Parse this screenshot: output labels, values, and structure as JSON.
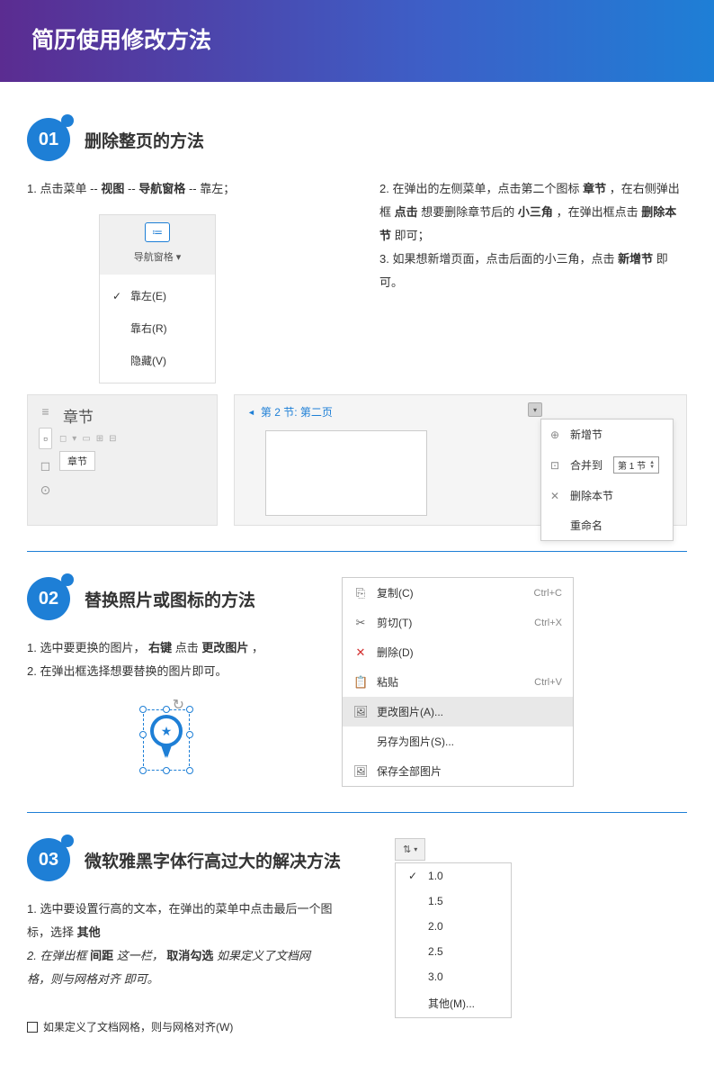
{
  "header_title": "简历使用修改方法",
  "sec1": {
    "num": "01",
    "title": "删除整页的方法",
    "step1": "1.  点击菜单  --",
    "s1_b1": "视图",
    "s1_mid": "--",
    "s1_b2": "导航窗格",
    "s1_end": "--  靠左；",
    "step2_a": "2.  在弹出的左侧菜单，点击第二个图标",
    "step2_b": "章节",
    "step2_c": "，在右侧弹出框",
    "step2_d": "点击",
    "step2_e": "想要删除章节后的",
    "step2_f": "小三角",
    "step2_g": "，在弹出框点击",
    "step2_h": "删除本节",
    "step2_i": "即可；",
    "step3_a": "3.  如果想新增页面，点击后面的小三角，点击",
    "step3_b": "新增节",
    "step3_c": "即可。",
    "nav_label": "导航窗格",
    "nav_items": [
      "靠左(E)",
      "靠右(R)",
      "隐藏(V)"
    ],
    "sidebar_title": "章节",
    "sidebar_tag": "章节",
    "doc_title": "第 2 节: 第二页",
    "ctx_items": [
      {
        "icon": "⊕",
        "label": "新增节"
      },
      {
        "icon": "⊡",
        "label": "合并到",
        "spinner": "第 1 节"
      },
      {
        "icon": "✕",
        "label": "删除本节"
      },
      {
        "icon": "",
        "label": "重命名"
      }
    ]
  },
  "sec2": {
    "num": "02",
    "title": "替换照片或图标的方法",
    "step1": "1. 选中要更换的图片，",
    "s1_b": "右键",
    "s1_mid": "点击",
    "s1_b2": "更改图片",
    "s1_end": "，",
    "step2": "2. 在弹出框选择想要替换的图片即可。",
    "menu": [
      {
        "icon": "⎘",
        "label": "复制(C)",
        "shortcut": "Ctrl+C"
      },
      {
        "icon": "✂",
        "label": "剪切(T)",
        "shortcut": "Ctrl+X"
      },
      {
        "icon": "✕",
        "label": "删除(D)",
        "shortcut": "",
        "red": true
      },
      {
        "icon": "📋",
        "label": "粘贴",
        "shortcut": "Ctrl+V"
      },
      {
        "icon": "🖼",
        "label": "更改图片(A)...",
        "shortcut": "",
        "highlight": true
      },
      {
        "icon": "",
        "label": "另存为图片(S)...",
        "shortcut": "",
        "indent": true
      },
      {
        "icon": "🖼",
        "label": "保存全部图片",
        "shortcut": ""
      }
    ]
  },
  "sec3": {
    "num": "03",
    "title": "微软雅黑字体行高过大的解决方法",
    "step1": "1. 选中要设置行高的文本，在弹出的菜单中点击最后一个图标，选择",
    "s1_b": "其他",
    "step2_a": "2. 在弹出框",
    "step2_b": "间距",
    "step2_c": "这一栏，",
    "step2_d": "取消勾选",
    "step2_e": "如果定义了文档网格，则与网格对齐",
    "step2_f": " 即可。",
    "checkbox_label": "如果定义了文档网格，则与网格对齐(W)",
    "line_btn": "⇅",
    "line_items": [
      "1.0",
      "1.5",
      "2.0",
      "2.5",
      "3.0",
      "其他(M)..."
    ]
  }
}
